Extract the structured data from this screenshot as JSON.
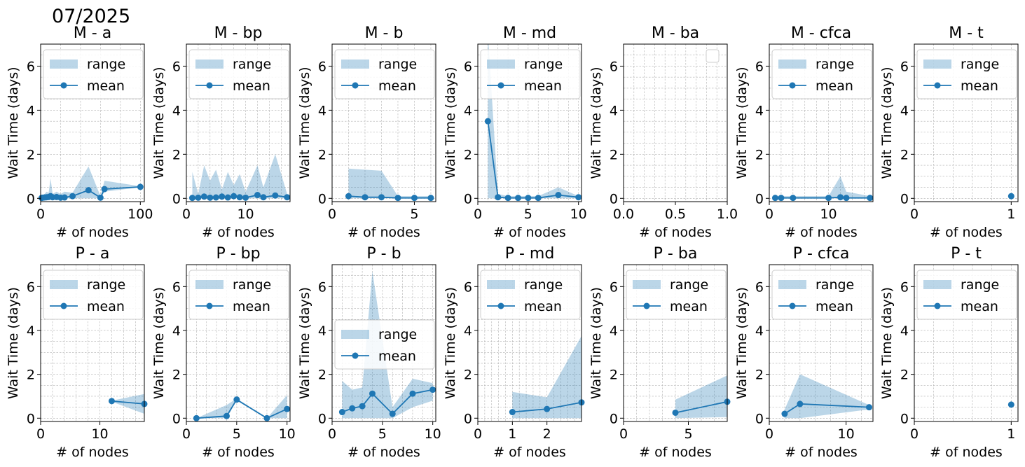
{
  "figure": {
    "suptitle": "07/2025",
    "xlabel": "# of nodes",
    "ylabel": "Wait Time (days)",
    "legend_range": "range",
    "legend_mean": "mean",
    "colors": {
      "mean": "#1f77b4",
      "range": "#1f77b4",
      "grid": "#b0b0b0"
    }
  },
  "chart_data": [
    {
      "type": "line",
      "title": "M -  a",
      "xlabel": "# of nodes",
      "ylabel": "Wait Time (days)",
      "xlim": [
        0,
        104
      ],
      "ylim": [
        -0.15,
        7
      ],
      "xticks": [
        0,
        100
      ],
      "yticks": [
        0,
        2,
        4,
        6
      ],
      "legend": "upper-left",
      "x": [
        1,
        2,
        4,
        6,
        8,
        10,
        12,
        16,
        20,
        24,
        32,
        48,
        60,
        64,
        100
      ],
      "mean": [
        0.02,
        0.03,
        0.04,
        0.05,
        0.06,
        0.1,
        0.05,
        0.06,
        0.03,
        0.04,
        0.1,
        0.37,
        0.03,
        0.42,
        0.52
      ],
      "min": [
        0,
        0,
        0,
        0,
        0,
        0,
        0,
        0,
        0,
        0,
        0,
        0,
        0,
        0.3,
        0.5
      ],
      "max": [
        0.1,
        0.12,
        0.2,
        0.3,
        0.25,
        0.9,
        0.2,
        0.3,
        0.2,
        0.3,
        0.25,
        1.45,
        0.1,
        0.8,
        0.55
      ]
    },
    {
      "type": "line",
      "title": "M -  bp",
      "xlabel": "# of nodes",
      "ylabel": "Wait Time (days)",
      "xlim": [
        0,
        17.5
      ],
      "ylim": [
        -0.15,
        7
      ],
      "xticks": [
        0,
        10
      ],
      "yticks": [
        0,
        2,
        4,
        6
      ],
      "legend": "upper-left",
      "x": [
        1,
        2,
        3,
        4,
        5,
        6,
        7,
        8,
        9,
        10,
        12,
        13,
        15,
        17
      ],
      "mean": [
        0.02,
        0.03,
        0.08,
        0.03,
        0.04,
        0.08,
        0.04,
        0.1,
        0.05,
        0.03,
        0.15,
        0.05,
        0.13,
        0.05
      ],
      "min": [
        0,
        0,
        0,
        0,
        0,
        0,
        0,
        0,
        0,
        0,
        0,
        0,
        0,
        0
      ],
      "max": [
        1.2,
        0.2,
        1.5,
        0.8,
        1.3,
        0.4,
        1.2,
        0.6,
        1.1,
        0.3,
        1.5,
        0.5,
        2.0,
        0.2
      ]
    },
    {
      "type": "line",
      "title": "M -  b",
      "xlabel": "# of nodes",
      "ylabel": "Wait Time (days)",
      "xlim": [
        0,
        6.3
      ],
      "ylim": [
        -0.15,
        7
      ],
      "xticks": [
        0,
        5
      ],
      "yticks": [
        0,
        2,
        4,
        6
      ],
      "legend": "upper-left",
      "x": [
        1,
        2,
        3,
        4,
        5,
        6
      ],
      "mean": [
        0.1,
        0.05,
        0.05,
        0.02,
        0.02,
        0.02
      ],
      "min": [
        0,
        0,
        0,
        0,
        0,
        0
      ],
      "max": [
        1.35,
        1.3,
        1.25,
        0.1,
        0.1,
        0.1
      ]
    },
    {
      "type": "line",
      "title": "M -  md",
      "xlabel": "# of nodes",
      "ylabel": "Wait Time (days)",
      "xlim": [
        0,
        10.3
      ],
      "ylim": [
        -0.15,
        7
      ],
      "xticks": [
        0,
        5,
        10
      ],
      "yticks": [
        0,
        2,
        4,
        6
      ],
      "legend": "upper-left",
      "x": [
        1,
        2,
        3,
        4,
        5,
        6,
        8,
        10
      ],
      "mean": [
        3.5,
        0.05,
        0.02,
        0.02,
        0.02,
        0.02,
        0.15,
        0.05
      ],
      "min": [
        0,
        0,
        0,
        0,
        0,
        0,
        0,
        0
      ],
      "max": [
        7.5,
        0.2,
        0.1,
        0.1,
        0.1,
        0.1,
        0.5,
        0.1
      ]
    },
    {
      "type": "line",
      "title": "M -  ba",
      "xlabel": "# of nodes",
      "ylabel": "Wait Time (days)",
      "xlim": [
        0,
        1
      ],
      "ylim": [
        -0.15,
        7
      ],
      "xticks": [
        0.0,
        0.5,
        1.0
      ],
      "ytickDecimals": 0,
      "xtickDecimals": 1,
      "yticks": [
        0,
        2,
        4,
        6
      ],
      "legend": "upper-right-empty",
      "x": [],
      "mean": [],
      "min": [],
      "max": []
    },
    {
      "type": "line",
      "title": "M -  cfca",
      "xlabel": "# of nodes",
      "ylabel": "Wait Time (days)",
      "xlim": [
        0,
        17.5
      ],
      "ylim": [
        -0.15,
        7
      ],
      "xticks": [
        0,
        10
      ],
      "yticks": [
        0,
        2,
        4,
        6
      ],
      "legend": "upper-left",
      "x": [
        1,
        2,
        4,
        10,
        12,
        13,
        17
      ],
      "mean": [
        0.02,
        0.02,
        0.02,
        0.02,
        0.05,
        0.02,
        0.02
      ],
      "min": [
        0,
        0,
        0,
        0,
        0,
        0,
        0
      ],
      "max": [
        0.1,
        0.1,
        0.1,
        0.1,
        1.0,
        0.3,
        0.1
      ]
    },
    {
      "type": "line",
      "title": "M -  t",
      "xlabel": "# of nodes",
      "ylabel": "Wait Time (days)",
      "xlim": [
        0,
        1.07
      ],
      "ylim": [
        -0.15,
        7
      ],
      "xticks": [
        0,
        1
      ],
      "yticks": [
        0,
        2,
        4,
        6
      ],
      "legend": "upper-left",
      "x": [
        1
      ],
      "mean": [
        0.1
      ],
      "min": [
        0.1
      ],
      "max": [
        0.1
      ]
    },
    {
      "type": "line",
      "title": "P -  a",
      "xlabel": "# of nodes",
      "ylabel": "Wait Time (days)",
      "xlim": [
        0,
        17.5
      ],
      "ylim": [
        -0.15,
        7
      ],
      "xticks": [
        0,
        10
      ],
      "yticks": [
        0,
        2,
        4,
        6
      ],
      "legend": "upper-left",
      "x": [
        12,
        17.5
      ],
      "mean": [
        0.78,
        0.65
      ],
      "min": [
        0.75,
        0.2
      ],
      "max": [
        0.8,
        1.1
      ]
    },
    {
      "type": "line",
      "title": "P -  bp",
      "xlabel": "# of nodes",
      "ylabel": "Wait Time (days)",
      "xlim": [
        0,
        10.3
      ],
      "ylim": [
        -0.15,
        7
      ],
      "xticks": [
        0,
        5,
        10
      ],
      "yticks": [
        0,
        2,
        4,
        6
      ],
      "legend": "upper-left",
      "x": [
        1,
        4,
        5,
        8,
        10
      ],
      "mean": [
        0.0,
        0.1,
        0.85,
        0.0,
        0.42
      ],
      "min": [
        0,
        0,
        0.8,
        0,
        0
      ],
      "max": [
        0,
        0.6,
        0.9,
        0,
        1.05
      ]
    },
    {
      "type": "line",
      "title": "P -  b",
      "xlabel": "# of nodes",
      "ylabel": "Wait Time (days)",
      "xlim": [
        0,
        10.3
      ],
      "ylim": [
        -0.15,
        7
      ],
      "xticks": [
        0,
        5,
        10
      ],
      "yticks": [
        0,
        2,
        4,
        6
      ],
      "legend": "center-left",
      "x": [
        1,
        2,
        3,
        4,
        6,
        8,
        10
      ],
      "mean": [
        0.28,
        0.45,
        0.55,
        1.12,
        0.2,
        1.12,
        1.3
      ],
      "min": [
        0,
        0,
        0,
        0,
        0,
        0.5,
        0.8
      ],
      "max": [
        1.7,
        1.3,
        1.4,
        6.7,
        0.5,
        1.8,
        1.6
      ]
    },
    {
      "type": "line",
      "title": "P -  md",
      "xlabel": "# of nodes",
      "ylabel": "Wait Time (days)",
      "xlim": [
        0,
        3
      ],
      "ylim": [
        -0.15,
        7
      ],
      "xticks": [
        0,
        1,
        2
      ],
      "yticks": [
        0,
        2,
        4,
        6
      ],
      "legend": "upper-left",
      "x": [
        1,
        2,
        3
      ],
      "mean": [
        0.28,
        0.42,
        0.72
      ],
      "min": [
        0,
        0,
        0
      ],
      "max": [
        1.2,
        0.95,
        3.75
      ]
    },
    {
      "type": "line",
      "title": "P -  ba",
      "xlabel": "# of nodes",
      "ylabel": "Wait Time (days)",
      "xlim": [
        0,
        8
      ],
      "ylim": [
        -0.15,
        7
      ],
      "xticks": [
        0,
        5
      ],
      "yticks": [
        0,
        2,
        4,
        6
      ],
      "legend": "upper-left",
      "x": [
        4,
        8
      ],
      "mean": [
        0.25,
        0.75
      ],
      "min": [
        0,
        0.05
      ],
      "max": [
        0.85,
        1.95
      ]
    },
    {
      "type": "line",
      "title": "P -  cfca",
      "xlabel": "# of nodes",
      "ylabel": "Wait Time (days)",
      "xlim": [
        0,
        13.5
      ],
      "ylim": [
        -0.15,
        7
      ],
      "xticks": [
        0,
        10
      ],
      "yticks": [
        0,
        2,
        4,
        6
      ],
      "legend": "upper-left",
      "x": [
        2,
        4,
        13
      ],
      "mean": [
        0.2,
        0.65,
        0.5
      ],
      "min": [
        0,
        0,
        0.4
      ],
      "max": [
        0.4,
        2.0,
        0.6
      ]
    },
    {
      "type": "line",
      "title": "P -  t",
      "xlabel": "# of nodes",
      "ylabel": "Wait Time (days)",
      "xlim": [
        0,
        1.07
      ],
      "ylim": [
        -0.15,
        7
      ],
      "xticks": [
        0,
        1
      ],
      "yticks": [
        0,
        2,
        4,
        6
      ],
      "legend": "upper-left",
      "x": [
        1
      ],
      "mean": [
        0.62
      ],
      "min": [
        0.62
      ],
      "max": [
        0.62
      ]
    }
  ]
}
